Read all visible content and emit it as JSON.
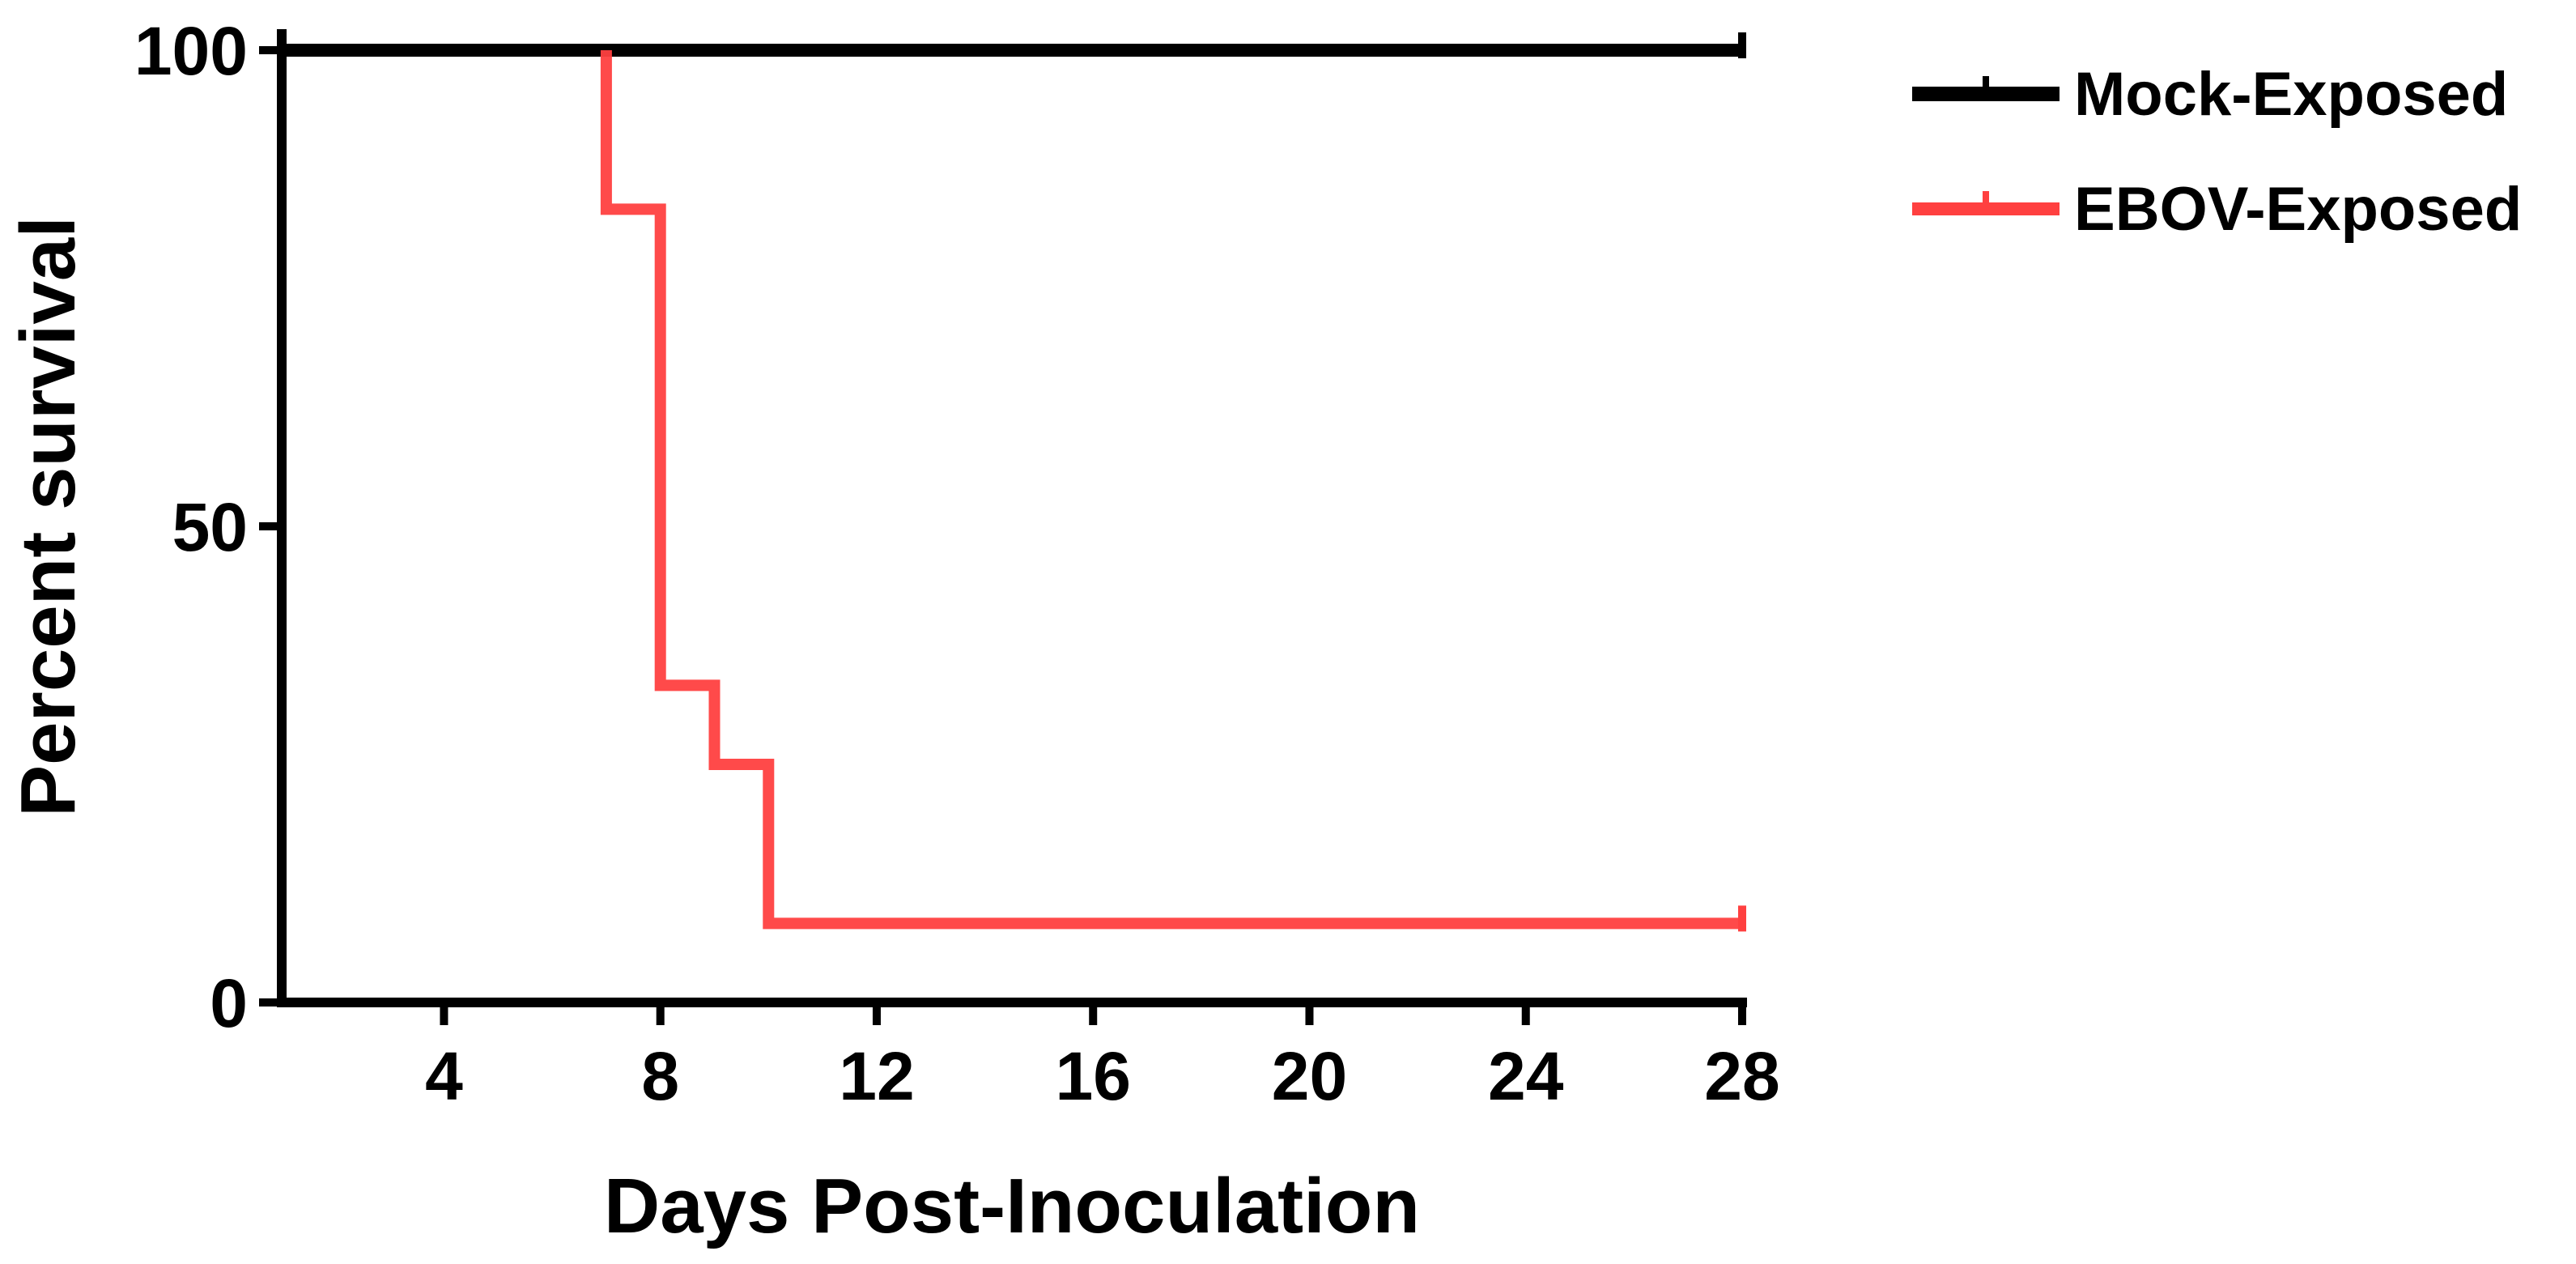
{
  "chart_data": {
    "type": "line",
    "subtype": "kaplan-meier step",
    "xlabel": "Days Post-Inoculation",
    "ylabel": "Percent survival",
    "xlim": [
      1,
      28
    ],
    "ylim": [
      0,
      100
    ],
    "xticks": [
      "4",
      "8",
      "12",
      "16",
      "20",
      "24",
      "28"
    ],
    "yticks": [
      "0",
      "50",
      "100"
    ],
    "grid": false,
    "legend_position": "top-right, outside plot",
    "series": [
      {
        "name": "Mock-Exposed",
        "color": "#000000",
        "steps": [
          {
            "x": 1,
            "y": 100
          },
          {
            "x": 28,
            "y": 100
          }
        ],
        "censor_x": [
          28
        ]
      },
      {
        "name": "EBOV-Exposed",
        "color": "#ff4040",
        "steps": [
          {
            "x": 7,
            "y": 100
          },
          {
            "x": 7,
            "y": 83.3
          },
          {
            "x": 8,
            "y": 83.3
          },
          {
            "x": 8,
            "y": 33.3
          },
          {
            "x": 9,
            "y": 33.3
          },
          {
            "x": 9,
            "y": 25
          },
          {
            "x": 10,
            "y": 25
          },
          {
            "x": 10,
            "y": 8.3
          },
          {
            "x": 28,
            "y": 8.3
          }
        ],
        "censor_x": [
          28
        ]
      }
    ]
  }
}
